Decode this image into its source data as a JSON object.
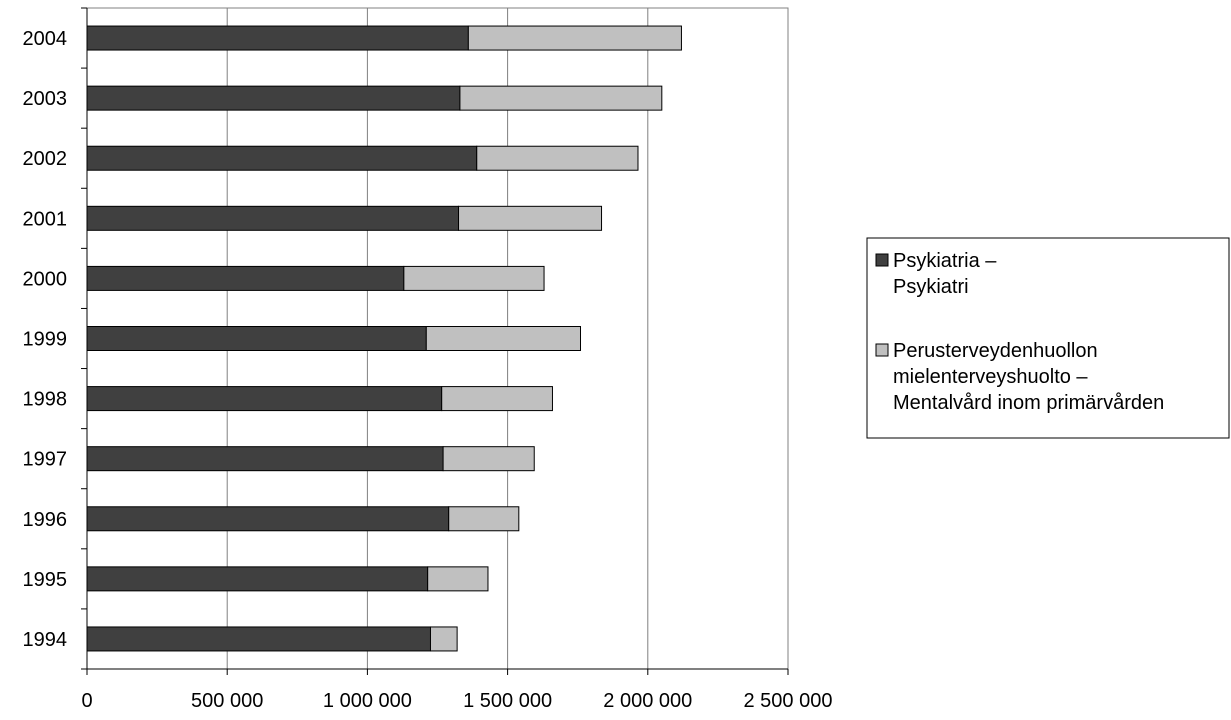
{
  "chart_data": {
    "type": "bar",
    "orientation": "horizontal",
    "stacked": true,
    "title": "",
    "xlabel": "",
    "ylabel": "",
    "xlim": [
      0,
      2500000
    ],
    "x_ticks": [
      0,
      500000,
      1000000,
      1500000,
      2000000,
      2500000
    ],
    "x_tick_labels": [
      "0",
      "500 000",
      "1 000 000",
      "1 500 000",
      "2 000 000",
      "2 500 000"
    ],
    "grid": "vertical",
    "legend_position": "right",
    "categories": [
      "2004",
      "2003",
      "2002",
      "2001",
      "2000",
      "1999",
      "1998",
      "1997",
      "1996",
      "1995",
      "1994"
    ],
    "series": [
      {
        "name": "Psykiatria – Psykiatri",
        "legend_lines": [
          "Psykiatria –",
          "Psykiatri"
        ],
        "color": "#404040",
        "values": [
          1360000,
          1330000,
          1390000,
          1325000,
          1130000,
          1210000,
          1265000,
          1270000,
          1290000,
          1215000,
          1225000
        ]
      },
      {
        "name": "Perusterveydenhuollon mielenterveyshuolto – Mentalvård inom primärvården",
        "legend_lines": [
          "Perusterveydenhuollon",
          "mielenterveyshuolto –",
          "Mentalvård inom primärvården"
        ],
        "color": "#c0c0c0",
        "values": [
          760000,
          720000,
          575000,
          510000,
          500000,
          550000,
          395000,
          325000,
          250000,
          215000,
          95000
        ]
      }
    ]
  }
}
